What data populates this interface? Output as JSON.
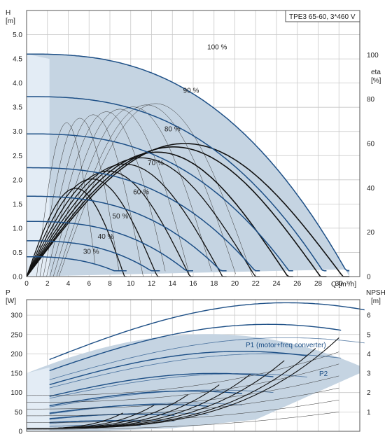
{
  "colors": {
    "area": "#c5d4e2",
    "area_light": "#e3ecf5",
    "curve": "#1d4f86",
    "eff": "#111111",
    "thin": "#333333"
  },
  "chart_data": [
    {
      "type": "line",
      "title": "TPE3 65-60, 3*460 V",
      "ylabel_top": "H",
      "ylabel_unit": "[m]",
      "xlabel": "Q [m³/h]",
      "y2label_top": "eta",
      "y2label_unit": "[%]",
      "xlim": [
        0,
        32
      ],
      "ylim": [
        0,
        5.5
      ],
      "y2lim": [
        0,
        120
      ],
      "x_ticks": [
        0,
        2,
        4,
        6,
        8,
        10,
        12,
        14,
        16,
        18,
        20,
        22,
        24,
        26,
        28,
        30
      ],
      "y_ticks": [
        "0.0",
        "0.5",
        "1.0",
        "1.5",
        "2.0",
        "2.5",
        "3.0",
        "3.5",
        "4.0",
        "4.5",
        "5.0"
      ],
      "y2_ticks": [
        0,
        20,
        40,
        60,
        80,
        100
      ],
      "speed_curves": [
        {
          "label": "100 %",
          "H0": 4.6,
          "Qmax": 31.0,
          "label_x": 18.3,
          "label_y": 4.7
        },
        {
          "label": "90 %",
          "H0": 3.72,
          "Qmax": 28.8,
          "label_x": 15.8,
          "label_y": 3.8
        },
        {
          "label": "80 %",
          "H0": 2.95,
          "Qmax": 25.6,
          "label_x": 14.0,
          "label_y": 3.0
        },
        {
          "label": "70 %",
          "H0": 2.25,
          "Qmax": 22.4,
          "label_x": 12.4,
          "label_y": 2.3
        },
        {
          "label": "60 %",
          "H0": 1.66,
          "Qmax": 19.2,
          "label_x": 11.0,
          "label_y": 1.7
        },
        {
          "label": "50 %",
          "H0": 1.14,
          "Qmax": 16.0,
          "label_x": 9.0,
          "label_y": 1.2
        },
        {
          "label": "40 %",
          "H0": 0.74,
          "Qmax": 12.8,
          "label_x": 7.6,
          "label_y": 0.78
        },
        {
          "label": "30 %",
          "H0": 0.41,
          "Qmax": 9.6,
          "label_x": 6.2,
          "label_y": 0.47
        }
      ],
      "efficiency_peak_pct": 60
    },
    {
      "type": "line",
      "ylabel_top": "P",
      "ylabel_unit": "[W]",
      "y2label_top": "NPSH",
      "y2label_unit": "[m]",
      "xlim": [
        0,
        32
      ],
      "ylim": [
        0,
        340
      ],
      "y2lim": [
        0,
        6.8
      ],
      "y_ticks": [
        0,
        50,
        100,
        150,
        200,
        250,
        300
      ],
      "y2_ticks": [
        1,
        2,
        3,
        4,
        5,
        6
      ],
      "series_labels": {
        "p1": "P1 (motor+freq converter)",
        "p2": "P2"
      }
    }
  ]
}
